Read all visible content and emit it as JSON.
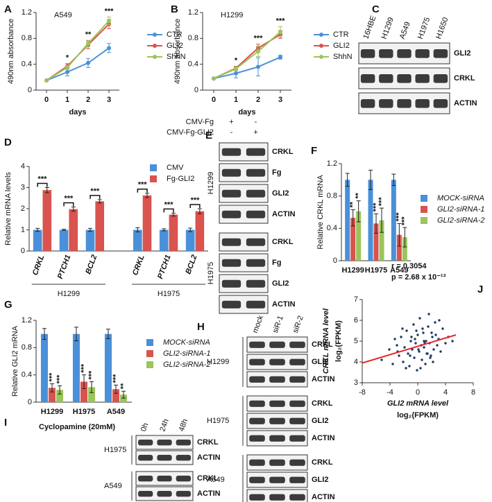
{
  "chart_data": [
    {
      "type": "line",
      "panel": "A",
      "title": "A549",
      "ylabel": "490nm absorbance",
      "xlabel": "days",
      "categories": [
        "0",
        "1",
        "2",
        "3"
      ],
      "ylim": [
        0,
        1.2
      ],
      "yticks": [
        0,
        0.4,
        0.8,
        1.2
      ],
      "annotations": [
        null,
        "*",
        "**",
        "***"
      ],
      "series": [
        {
          "name": "CTR",
          "color": "#4a90d9",
          "values": [
            0.15,
            0.28,
            0.42,
            0.65
          ],
          "errors": [
            0.01,
            0.06,
            0.07,
            0.07
          ]
        },
        {
          "name": "GLI2",
          "color": "#d9534f",
          "values": [
            0.15,
            0.37,
            0.7,
            1.02
          ],
          "errors": [
            0.01,
            0.04,
            0.06,
            0.07
          ]
        },
        {
          "name": "ShhN",
          "color": "#9bc45a",
          "values": [
            0.15,
            0.35,
            0.72,
            1.07
          ],
          "errors": [
            0.01,
            0.03,
            0.05,
            0.06
          ]
        }
      ]
    },
    {
      "type": "line",
      "panel": "B",
      "title": "H1299",
      "ylabel": "490nm absorbance",
      "xlabel": "days",
      "categories": [
        "0",
        "1",
        "2",
        "3"
      ],
      "ylim": [
        0,
        1.2
      ],
      "yticks": [
        0,
        0.4,
        0.8,
        1.2
      ],
      "annotations": [
        null,
        "*",
        "***",
        "***"
      ],
      "series": [
        {
          "name": "CTR",
          "color": "#4a90d9",
          "values": [
            0.18,
            0.26,
            0.36,
            0.51
          ],
          "errors": [
            0.01,
            0.07,
            0.14,
            0.03
          ]
        },
        {
          "name": "GLI2",
          "color": "#d9534f",
          "values": [
            0.18,
            0.34,
            0.65,
            0.86
          ],
          "errors": [
            0.01,
            0.03,
            0.06,
            0.06
          ]
        },
        {
          "name": "ShhN",
          "color": "#9bc45a",
          "values": [
            0.18,
            0.33,
            0.6,
            0.9
          ],
          "errors": [
            0.01,
            0.03,
            0.08,
            0.08
          ]
        }
      ]
    },
    {
      "type": "bar",
      "panel": "D",
      "ylabel": "Relative mRNA levels",
      "categories": [
        "CRKL",
        "PTCH1",
        "BCL2",
        "CRKL",
        "PTCH1",
        "BCL2"
      ],
      "category_italic": true,
      "groups": [
        "H1299",
        "H1975"
      ],
      "ylim": [
        0,
        4
      ],
      "yticks": [
        0,
        1,
        2,
        3,
        4
      ],
      "annotations": [
        "***",
        "***",
        "***",
        "***",
        "***",
        "***"
      ],
      "series": [
        {
          "name": "CMV",
          "color": "#4a90d9",
          "values": [
            1,
            1,
            1,
            1,
            1,
            1
          ],
          "errors": [
            0.07,
            0.03,
            0.07,
            0.1,
            0.05,
            0.08
          ]
        },
        {
          "name": "Fg-GLI2",
          "color": "#d9534f",
          "values": [
            2.88,
            1.98,
            2.35,
            2.63,
            1.72,
            1.88
          ],
          "errors": [
            0.12,
            0.1,
            0.08,
            0.1,
            0.07,
            0.12
          ]
        }
      ]
    },
    {
      "type": "bar",
      "panel": "F",
      "ylabel": "Relative CRKL mRNA",
      "legend_italic": true,
      "categories": [
        "H1299",
        "H1975",
        "A549"
      ],
      "ylim": [
        0,
        1.2
      ],
      "yticks": [
        0,
        0.4,
        0.8,
        1.2
      ],
      "series": [
        {
          "name": "MOCK-siRNA",
          "color": "#4a90d9",
          "values": [
            1,
            1,
            1
          ],
          "errors": [
            0.08,
            0.12,
            0.07
          ]
        },
        {
          "name": "GLI2-siRNA-1",
          "color": "#d9534f",
          "values": [
            0.53,
            0.46,
            0.32
          ],
          "errors": [
            0.1,
            0.12,
            0.14
          ],
          "annotations": [
            "**",
            "***",
            "***"
          ]
        },
        {
          "name": "GLI2-siRNA-2",
          "color": "#9bc45a",
          "values": [
            0.61,
            0.5,
            0.29
          ],
          "errors": [
            0.13,
            0.15,
            0.12
          ],
          "annotations": [
            "**",
            "***",
            "***"
          ]
        }
      ]
    },
    {
      "type": "bar",
      "panel": "G",
      "ylabel": "Relative GLI2 mRNA",
      "legend_italic": true,
      "categories": [
        "H1299",
        "H1975",
        "A549"
      ],
      "ylim": [
        0,
        1.2
      ],
      "yticks": [
        0,
        0.4,
        0.8,
        1.2
      ],
      "series": [
        {
          "name": "MOCK-siRNA",
          "color": "#4a90d9",
          "values": [
            1,
            1,
            1
          ],
          "errors": [
            0.08,
            0.1,
            0.07
          ]
        },
        {
          "name": "GLI2-siRNA-1",
          "color": "#d9534f",
          "values": [
            0.21,
            0.3,
            0.19
          ],
          "errors": [
            0.06,
            0.1,
            0.06
          ],
          "annotations": [
            "***",
            "***",
            "***"
          ]
        },
        {
          "name": "GLI2-siRNA-2",
          "color": "#9bc45a",
          "values": [
            0.18,
            0.22,
            0.11
          ],
          "errors": [
            0.06,
            0.08,
            0.05
          ],
          "annotations": [
            "***",
            "***",
            "**"
          ]
        }
      ]
    },
    {
      "type": "scatter",
      "panel": "J",
      "xlabel": [
        "GLI2 mRNA level",
        "log₂(FPKM)"
      ],
      "ylabel": [
        "CRKL mRNA level",
        "log₂(FPKM)"
      ],
      "annotations": [
        "r = 0.3054",
        "p = 2.68 x 10⁻¹³"
      ],
      "xlim": [
        -8,
        8
      ],
      "xticks": [
        -8,
        -4,
        0,
        4,
        8
      ],
      "ylim": [
        3,
        7
      ],
      "yticks": [
        3,
        4,
        5,
        6,
        7
      ],
      "color": "#1f3a5f",
      "x": [
        -5.2,
        -4.1,
        -3.6,
        -3.0,
        -2.7,
        -2.4,
        -2.1,
        -1.9,
        -1.6,
        -1.4,
        -1.2,
        -1.0,
        -0.8,
        -0.6,
        -0.5,
        -0.3,
        -0.1,
        0.0,
        0.2,
        0.3,
        0.5,
        0.6,
        0.8,
        0.9,
        1.1,
        1.2,
        1.4,
        1.5,
        1.7,
        1.9,
        2.1,
        2.3,
        2.5,
        2.8,
        3.0,
        3.3,
        3.6,
        4.0,
        4.4,
        5.0,
        -2.2,
        -1.1,
        -0.4,
        0.4,
        1.0,
        1.6,
        2.2,
        -3.3,
        -0.9,
        0.7,
        1.3,
        2.6,
        -1.7,
        0.1,
        3.1,
        -0.2,
        1.8,
        -2.9,
        0.9,
        2.0
      ],
      "y": [
        4.1,
        4.6,
        3.9,
        4.8,
        4.3,
        5.2,
        4.0,
        4.7,
        5.5,
        4.4,
        3.8,
        5.0,
        4.6,
        5.8,
        4.2,
        4.9,
        3.6,
        5.3,
        4.5,
        6.1,
        4.8,
        4.1,
        5.4,
        4.7,
        3.9,
        5.0,
        4.4,
        5.7,
        4.9,
        4.3,
        5.2,
        4.6,
        5.9,
        4.8,
        5.1,
        4.5,
        5.6,
        4.9,
        5.2,
        5.0,
        5.6,
        4.3,
        5.1,
        3.7,
        4.9,
        6.3,
        4.0,
        5.1,
        5.2,
        5.6,
        4.4,
        5.3,
        3.7,
        4.6,
        6.0,
        5.5,
        4.2,
        4.5,
        5.0,
        5.4
      ],
      "trendline": {
        "x": [
          -8,
          5.5
        ],
        "y": [
          3.95,
          5.3
        ],
        "color": "#e8262a"
      }
    }
  ],
  "blots": [
    {
      "panel": "C",
      "lanes": [
        "16HBE",
        "H1299",
        "A549",
        "H1975",
        "H1650"
      ],
      "groups": [
        {
          "rows": [
            "GLI2",
            "CRKL",
            "ACTIN"
          ]
        }
      ]
    },
    {
      "panel": "E",
      "header": [
        {
          "label": "CMV-Fg",
          "signs": [
            "+",
            "-"
          ]
        },
        {
          "label": "CMV-Fg-GLI2",
          "signs": [
            "-",
            "+"
          ]
        }
      ],
      "groups": [
        {
          "name": "H1299",
          "rows": [
            "CRKL",
            "Fg",
            "GLI2",
            "ACTIN"
          ]
        },
        {
          "name": "H1975",
          "rows": [
            "CRKL",
            "Fg",
            "GLI2",
            "ACTIN"
          ]
        }
      ]
    },
    {
      "panel": "H",
      "lanes": [
        "mock",
        "siR-1",
        "siR-2"
      ],
      "groups": [
        {
          "name": "H1299",
          "rows": [
            "CRKL",
            "GLI2",
            "ACTIN"
          ]
        },
        {
          "name": "H1975",
          "rows": [
            "CRKL",
            "GLI2",
            "ACTIN"
          ]
        },
        {
          "name": "A549",
          "rows": [
            "CRKL",
            "GLI2",
            "ACTIN"
          ]
        }
      ]
    },
    {
      "panel": "I",
      "treatment": "Cyclopamine (20mM)",
      "lanes": [
        "0h",
        "24h",
        "48h"
      ],
      "groups": [
        {
          "name": "H1975",
          "rows": [
            "CRKL",
            "ACTIN"
          ]
        },
        {
          "name": "A549",
          "rows": [
            "CRKL",
            "ACTIN"
          ]
        }
      ]
    }
  ]
}
